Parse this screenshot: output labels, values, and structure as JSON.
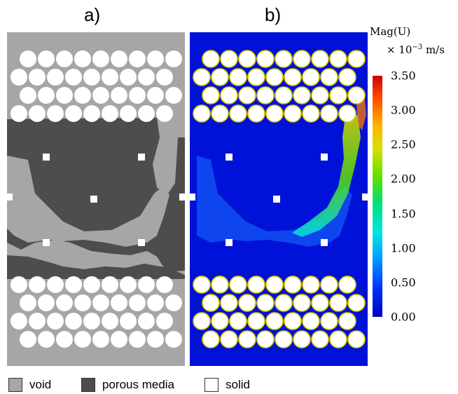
{
  "panels": {
    "a": {
      "label": "a)"
    },
    "b": {
      "label": "b)"
    }
  },
  "colorbar": {
    "title": "Mag(U)",
    "unit_prefix": "× 10",
    "unit_exp": "−3",
    "unit_suffix": " m/s",
    "ticks": [
      "3.50",
      "3.00",
      "2.50",
      "2.00",
      "1.50",
      "1.00",
      "0.50",
      "0.00"
    ],
    "tick_values": [
      3.5,
      3.0,
      2.5,
      2.0,
      1.5,
      1.0,
      0.5,
      0.0
    ],
    "range": [
      0.0,
      3.5
    ],
    "colors": [
      "#0000bf",
      "#0030ff",
      "#00a0ff",
      "#00e5e5",
      "#00e070",
      "#60e000",
      "#d8e000",
      "#ffb000",
      "#ff5000",
      "#d00000"
    ]
  },
  "legend": {
    "void": {
      "label": "void",
      "color": "#a6a6a6"
    },
    "porous": {
      "label": "porous media",
      "color": "#4d4d4d"
    },
    "solid": {
      "label": "solid",
      "color": "#ffffff"
    }
  }
}
